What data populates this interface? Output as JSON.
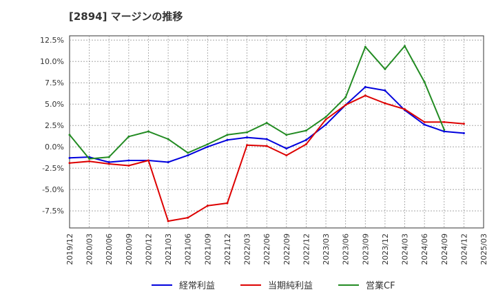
{
  "chart_data": {
    "type": "line",
    "title": "[2894]  マージンの推移",
    "x": [
      "2019/12",
      "2020/03",
      "2020/06",
      "2020/09",
      "2020/12",
      "2021/03",
      "2021/06",
      "2021/09",
      "2021/12",
      "2022/03",
      "2022/06",
      "2022/09",
      "2022/12",
      "2023/03",
      "2023/06",
      "2023/09",
      "2023/12",
      "2024/03",
      "2024/06",
      "2024/09",
      "2024/12",
      "2025/03"
    ],
    "ylim": [
      -9.5,
      13.0
    ],
    "yticks": [
      12.5,
      10.0,
      7.5,
      5.0,
      2.5,
      0.0,
      -2.5,
      -5.0,
      -7.5
    ],
    "ytick_labels": [
      "12.5%",
      "10.0%",
      "7.5%",
      "5.0%",
      "2.5%",
      "0.0%",
      "-2.5%",
      "-5.0%",
      "-7.5%"
    ],
    "grid": true,
    "legend_position": "bottom",
    "series": [
      {
        "name": "経常利益",
        "color": "#0000dd",
        "values": [
          -1.3,
          -1.2,
          -1.8,
          -1.6,
          -1.6,
          -1.8,
          -1.0,
          0.0,
          0.8,
          1.1,
          0.9,
          -0.2,
          0.8,
          2.6,
          4.9,
          7.0,
          6.6,
          4.3,
          2.6,
          1.8,
          1.6,
          null
        ]
      },
      {
        "name": "当期純利益",
        "color": "#dd0000",
        "values": [
          -1.9,
          -1.7,
          -2.0,
          -2.2,
          -1.6,
          -8.7,
          -8.3,
          -6.9,
          -6.6,
          0.2,
          0.1,
          -1.0,
          0.3,
          3.2,
          4.9,
          6.0,
          5.1,
          4.4,
          2.9,
          2.9,
          2.7,
          null
        ]
      },
      {
        "name": "営業CF",
        "color": "#228b22",
        "values": [
          1.4,
          -1.4,
          -1.2,
          1.2,
          1.8,
          0.9,
          -0.7,
          0.3,
          1.4,
          1.7,
          2.8,
          1.4,
          1.9,
          3.5,
          5.8,
          11.7,
          9.1,
          11.8,
          7.6,
          2.0,
          null,
          null
        ]
      }
    ]
  }
}
